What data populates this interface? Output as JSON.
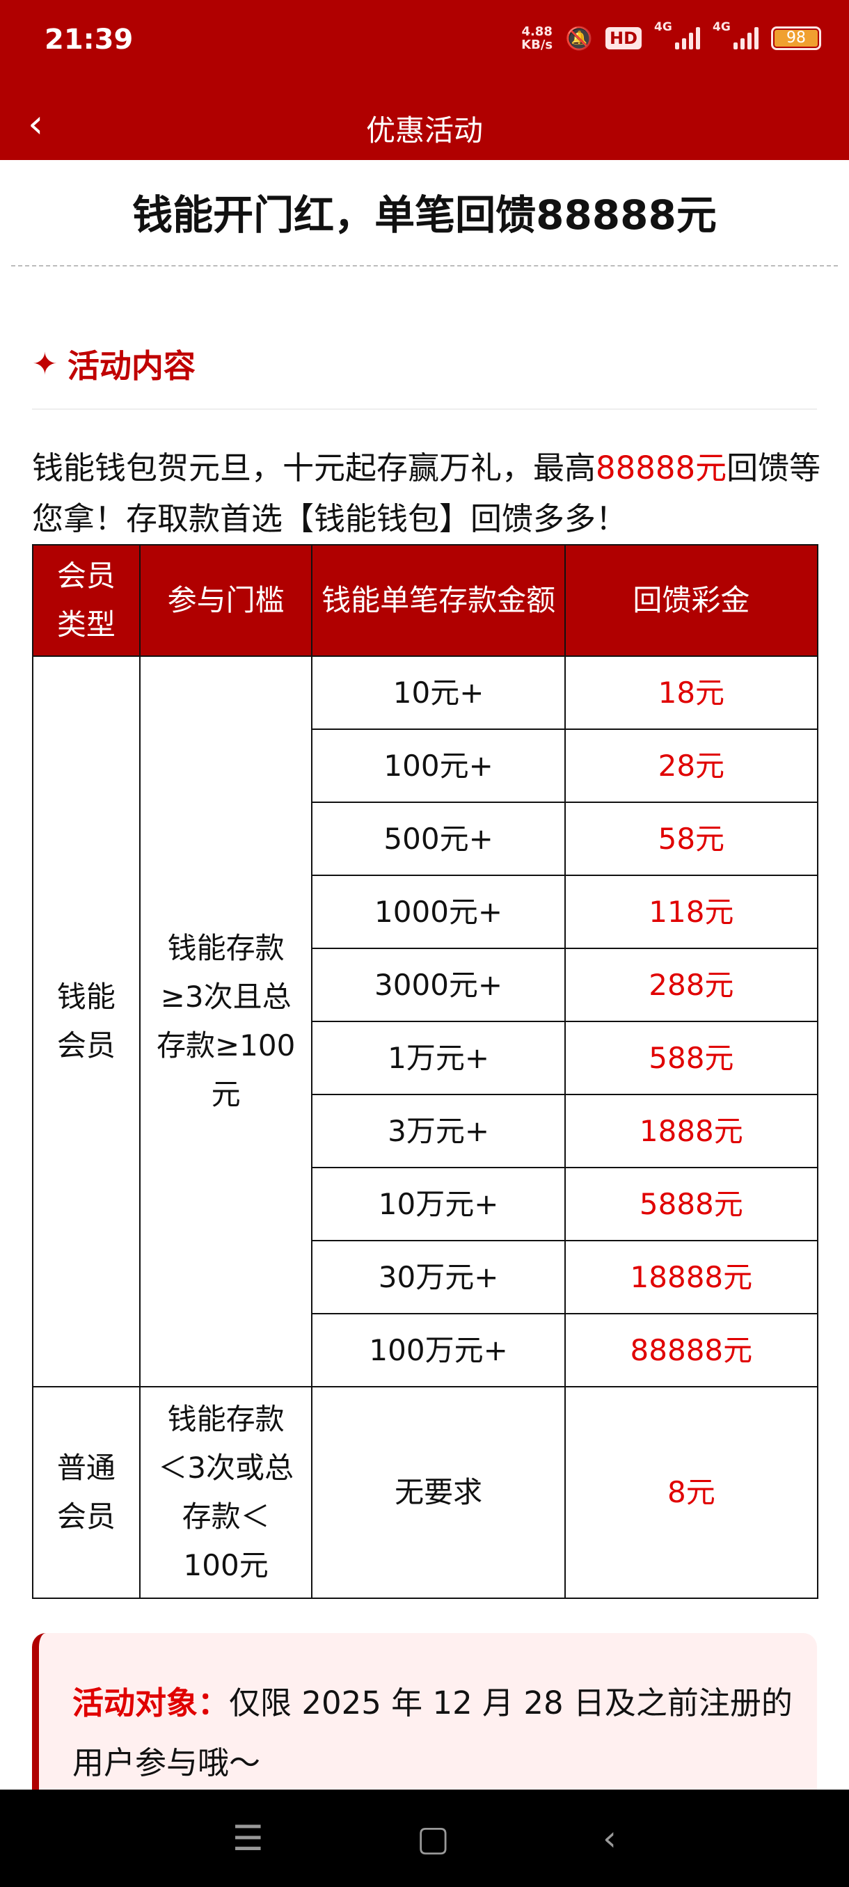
{
  "status": {
    "time": "21:39",
    "speed": "4.88",
    "speed_unit": "KB/s",
    "hd": "HD",
    "net1": "4G",
    "net2": "4G",
    "battery": "98"
  },
  "nav": {
    "title": "优惠活动"
  },
  "title": "钱能开门红，单笔回馈88888元",
  "section": {
    "heading": "活动内容"
  },
  "para": {
    "p1": "钱能钱包贺元旦，十元起存赢万礼，最高",
    "highlight": "88888元",
    "p2": "回馈等您拿！存取款首选【钱能钱包】回馈多多！"
  },
  "table": {
    "headers": [
      "会员类型",
      "参与门槛",
      "钱能单笔存款金额",
      "回馈彩金"
    ],
    "group1": {
      "type": "钱能会员",
      "threshold": "钱能存款≥3次且总存款≥100元",
      "rows": [
        [
          "10元+",
          "18元"
        ],
        [
          "100元+",
          "28元"
        ],
        [
          "500元+",
          "58元"
        ],
        [
          "1000元+",
          "118元"
        ],
        [
          "3000元+",
          "288元"
        ],
        [
          "1万元+",
          "588元"
        ],
        [
          "3万元+",
          "1888元"
        ],
        [
          "10万元+",
          "5888元"
        ],
        [
          "30万元+",
          "18888元"
        ],
        [
          "100万元+",
          "88888元"
        ]
      ]
    },
    "group2": {
      "type": "普通会员",
      "threshold": "钱能存款＜3次或总存款＜100元",
      "amount": "无要求",
      "bonus": "8元"
    }
  },
  "notice": {
    "label": "活动对象：",
    "text": "仅限 2025 年 12 月 28 日及之前注册的用户参与哦～"
  },
  "colors": {
    "brand": "#b00000",
    "highlight": "#e00000"
  }
}
